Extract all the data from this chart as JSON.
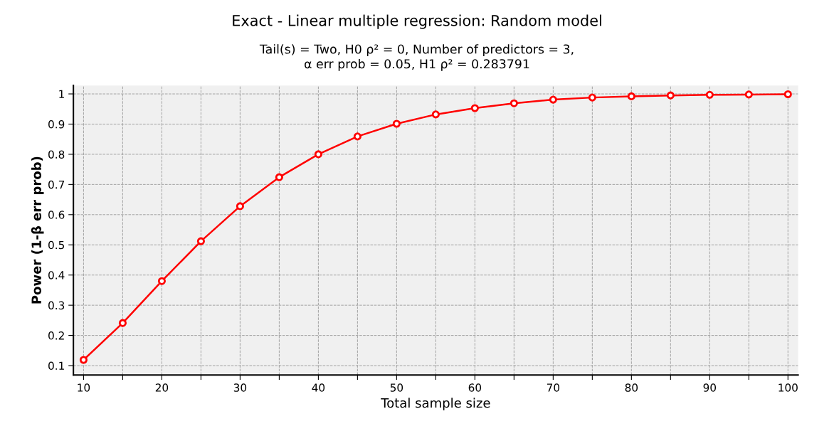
{
  "chart_data": {
    "type": "line",
    "title": "Exact - Linear multiple regression: Random model",
    "subtitle": "Tail(s) = Two, H0 ρ² = 0, Number of predictors = 3,\nα err prob = 0.05, H1 ρ² = 0.283791",
    "xlabel": "Total sample size",
    "ylabel": "Power (1-β err prob)",
    "x": [
      10,
      15,
      20,
      25,
      30,
      35,
      40,
      45,
      50,
      55,
      60,
      65,
      70,
      75,
      80,
      85,
      90,
      95,
      100
    ],
    "series": [
      {
        "color": "#ff0000",
        "values": [
          0.119,
          0.241,
          0.38,
          0.512,
          0.628,
          0.724,
          0.8,
          0.859,
          0.901,
          0.932,
          0.953,
          0.969,
          0.981,
          0.988,
          0.992,
          0.995,
          0.997,
          0.998,
          0.999
        ]
      }
    ],
    "xlim": [
      8.7,
      101.3
    ],
    "ylim": [
      0.069,
      1.028
    ],
    "xticks": [
      10,
      {
        "value": 15,
        "label": null
      },
      20,
      {
        "value": 25,
        "label": null
      },
      30,
      {
        "value": 35,
        "label": null
      },
      40,
      {
        "value": 45,
        "label": null
      },
      50,
      {
        "value": 55,
        "label": null
      },
      60,
      {
        "value": 65,
        "label": null
      },
      70,
      {
        "value": 75,
        "label": null
      },
      80,
      {
        "value": 85,
        "label": null
      },
      90,
      {
        "value": 95,
        "label": null
      },
      100
    ],
    "yticks": [
      0.1,
      0.2,
      0.3,
      0.4,
      0.5,
      0.6,
      0.7,
      0.8,
      0.9,
      1
    ],
    "grid": true,
    "marker": "circle",
    "line_style": "solid",
    "legend": false
  }
}
